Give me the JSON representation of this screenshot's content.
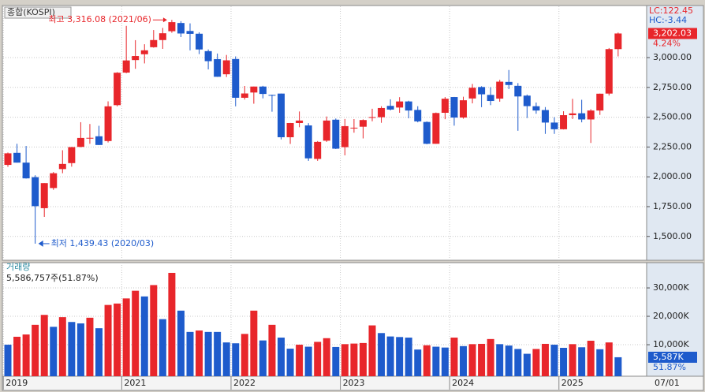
{
  "chart_data": {
    "type": "candlestick",
    "legend": "종합(KOSPI)",
    "up_color": "#e8262b",
    "down_color": "#1e5bcc",
    "categories": [
      "2019",
      null,
      null,
      null,
      null,
      null,
      null,
      null,
      null,
      null,
      null,
      null,
      null,
      "2021",
      null,
      null,
      null,
      null,
      null,
      null,
      null,
      null,
      null,
      null,
      null,
      "2022",
      null,
      null,
      null,
      null,
      null,
      null,
      null,
      null,
      null,
      null,
      null,
      "2023",
      null,
      null,
      null,
      null,
      null,
      null,
      null,
      null,
      null,
      null,
      null,
      "2024",
      null,
      null,
      null,
      null,
      null,
      null,
      null,
      null,
      null,
      null,
      null,
      "2025",
      null,
      null,
      null,
      null,
      null,
      null
    ],
    "x_end_label": "07/01",
    "open": [
      2100,
      2201,
      2119,
      1997,
      1737,
      1906,
      2065,
      2115,
      2251,
      2326,
      2340,
      2300,
      2601,
      2874,
      2979,
      3028,
      3087,
      3147,
      3221,
      3290,
      3223,
      3200,
      3054,
      2987,
      2860,
      2988,
      2663,
      2707,
      2757,
      2687,
      2698,
      2332,
      2451,
      2431,
      2150,
      2303,
      2479,
      2249,
      2412,
      2420,
      2495,
      2500,
      2595,
      2581,
      2632,
      2561,
      2460,
      2277,
      2537,
      2669,
      2497,
      2657,
      2753,
      2687,
      2656,
      2796,
      2763,
      2681,
      2592,
      2560,
      2455,
      2399,
      2517,
      2533,
      2481,
      2556,
      2698,
      3071
    ],
    "high": [
      2204,
      2277,
      2259,
      2013,
      1947,
      2040,
      2223,
      2251,
      2458,
      2443,
      2428,
      2633,
      2878,
      3266,
      3146,
      3112,
      3231,
      3249,
      3316.08,
      3305,
      3287,
      3212,
      3068,
      3034,
      3022,
      3010,
      2762,
      2757,
      2763,
      2689,
      2698,
      2452,
      2548,
      2450,
      2300,
      2506,
      2489,
      2485,
      2484,
      2482,
      2571,
      2592,
      2650,
      2668,
      2638,
      2592,
      2465,
      2539,
      2669,
      2670,
      2672,
      2779,
      2760,
      2752,
      2813,
      2896,
      2786,
      2690,
      2623,
      2585,
      2500,
      2550,
      2654,
      2646,
      2567,
      2698,
      3080,
      3210
    ],
    "low": [
      2084,
      2119,
      1985,
      1439.43,
      1664,
      1891,
      2030,
      2085,
      2248,
      2277,
      2267,
      2288,
      2591,
      2869,
      2906,
      2951,
      3083,
      3073,
      3208,
      3172,
      3060,
      3029,
      2901,
      2838,
      2837,
      2591,
      2648,
      2613,
      2658,
      2546,
      2314,
      2276,
      2416,
      2134,
      2134,
      2293,
      2233,
      2180,
      2370,
      2322,
      2466,
      2453,
      2557,
      2537,
      2491,
      2457,
      2273,
      2277,
      2483,
      2429,
      2487,
      2616,
      2584,
      2601,
      2630,
      2736,
      2386,
      2493,
      2529,
      2360,
      2360,
      2397,
      2485,
      2457,
      2284,
      2519,
      2682,
      3010
    ],
    "close": [
      2197,
      2119,
      1987,
      1754,
      1947,
      2030,
      2108,
      2249,
      2326,
      2327,
      2267,
      2591,
      2873,
      2976,
      3013,
      3061,
      3147,
      3204,
      3297,
      3202,
      3199,
      3068,
      2970,
      2839,
      2977,
      2663,
      2699,
      2757,
      2695,
      2685,
      2332,
      2451,
      2472,
      2155,
      2293,
      2472,
      2236,
      2425,
      2412,
      2476,
      2501,
      2577,
      2564,
      2632,
      2556,
      2465,
      2277,
      2535,
      2655,
      2497,
      2642,
      2747,
      2692,
      2636,
      2798,
      2770,
      2674,
      2593,
      2556,
      2455,
      2399,
      2517,
      2532,
      2481,
      2556,
      2697,
      3071,
      3202.03
    ],
    "ylim": [
      1300,
      3430
    ],
    "yticks": [
      {
        "value": 1500,
        "label": "1,500.00"
      },
      {
        "value": 1750,
        "label": "1,750.00"
      },
      {
        "value": 2000,
        "label": "2,000.00"
      },
      {
        "value": 2250,
        "label": "2,250.00"
      },
      {
        "value": 2500,
        "label": "2,500.00"
      },
      {
        "value": 2750,
        "label": "2,750.00"
      },
      {
        "value": 3000,
        "label": "3,000.00"
      }
    ],
    "high_label": "최고 3,316.08 (2021/06)",
    "low_label": "최저 1,439.43 (2020/03)",
    "lc_label": "LC:122.45",
    "hc_label": "HC:-3.44",
    "last_label": "3,202.03",
    "change_label": "4.24%",
    "volume": {
      "name": "거래량",
      "summary": "5,586,757주(51.87%)",
      "values": [
        10000,
        12800,
        13600,
        17000,
        20500,
        16300,
        19700,
        18000,
        17500,
        19500,
        15800,
        24000,
        24500,
        26300,
        29000,
        27000,
        31000,
        19000,
        35300,
        22000,
        14500,
        15000,
        14500,
        14500,
        10800,
        10500,
        13800,
        22000,
        11500,
        17000,
        12500,
        8600,
        10000,
        9300,
        11000,
        12300,
        9200,
        10200,
        10400,
        10600,
        16800,
        14100,
        12900,
        12700,
        12500,
        8300,
        9800,
        9300,
        9000,
        12500,
        9500,
        10200,
        10300,
        12000,
        10200,
        9700,
        8500,
        6800,
        8500,
        10300,
        10000,
        8900,
        10200,
        9100,
        11400,
        8400,
        10800,
        5587
      ],
      "ylim": [
        -1100,
        38900
      ],
      "yticks": [
        {
          "value": 10000,
          "label": "10,000K"
        },
        {
          "value": 20000,
          "label": "20,000K"
        },
        {
          "value": 30000,
          "label": "30,000K"
        }
      ],
      "last_label": "5,587K",
      "ratio_label": "51.87%"
    }
  }
}
